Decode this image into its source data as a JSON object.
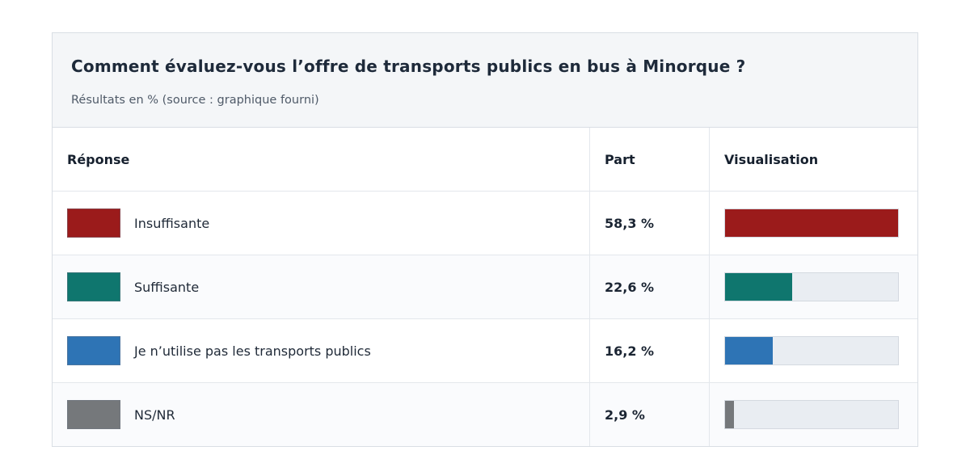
{
  "card": {
    "title": "Comment évaluez-vous l’offre de transports publics en bus à Minorque ?",
    "subtitle": "Résultats en % (source : graphique fourni)"
  },
  "table": {
    "columns": {
      "response": "Réponse",
      "part": "Part",
      "visualisation": "Visualisation"
    },
    "bar_scale_max": 58.3,
    "rows": [
      {
        "label": "Insuffisante",
        "part": "58,3 %",
        "value": 58.3,
        "color": "#9b1b1b"
      },
      {
        "label": "Suffisante",
        "part": "22,6 %",
        "value": 22.6,
        "color": "#0f766e"
      },
      {
        "label": "Je n’utilise pas les transports publics",
        "part": "16,2 %",
        "value": 16.2,
        "color": "#2e74b5"
      },
      {
        "label": "NS/NR",
        "part": "2,9 %",
        "value": 2.9,
        "color": "#75787b"
      }
    ]
  },
  "chart_data": {
    "type": "table",
    "title": "Comment évaluez-vous l’offre de transports publics en bus à Minorque ?",
    "subtitle": "Résultats en % (source : graphique fourni)",
    "columns": [
      "Réponse",
      "Part",
      "Visualisation"
    ],
    "categories": [
      "Insuffisante",
      "Suffisante",
      "Je n’utilise pas les transports publics",
      "NS/NR"
    ],
    "values": [
      58.3,
      22.6,
      16.2,
      2.9
    ],
    "unit": "%",
    "bar_scale_max": 58.3,
    "colors": [
      "#9b1b1b",
      "#0f766e",
      "#2e74b5",
      "#75787b"
    ],
    "legend_position": "none",
    "grid": false
  }
}
